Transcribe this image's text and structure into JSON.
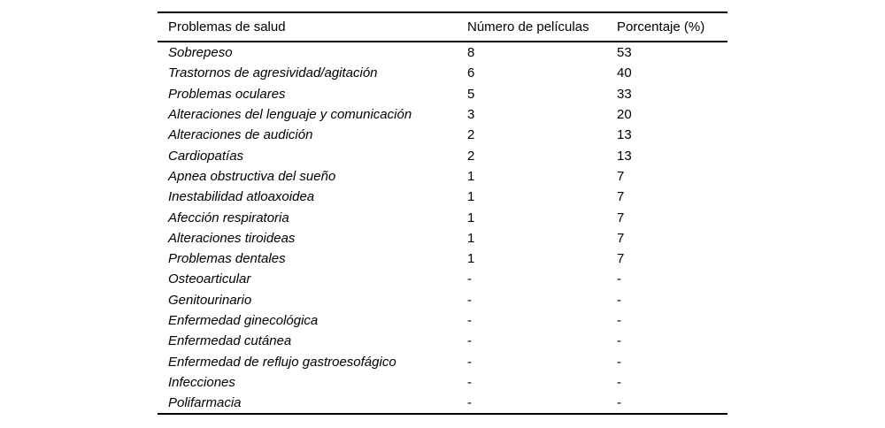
{
  "table": {
    "headers": [
      "Problemas de salud",
      "Número de películas",
      "Porcentaje (%)"
    ],
    "rows": [
      {
        "problema": "Sobrepeso",
        "peliculas": "8",
        "porcentaje": "53"
      },
      {
        "problema": "Trastornos de agresividad/agitación",
        "peliculas": "6",
        "porcentaje": "40"
      },
      {
        "problema": "Problemas oculares",
        "peliculas": "5",
        "porcentaje": "33"
      },
      {
        "problema": "Alteraciones del lenguaje y comunicación",
        "peliculas": "3",
        "porcentaje": "20"
      },
      {
        "problema": "Alteraciones de audición",
        "peliculas": "2",
        "porcentaje": "13"
      },
      {
        "problema": "Cardiopatías",
        "peliculas": "2",
        "porcentaje": "13"
      },
      {
        "problema": "Apnea obstructiva del sueño",
        "peliculas": "1",
        "porcentaje": "7"
      },
      {
        "problema": "Inestabilidad atloaxoidea",
        "peliculas": "1",
        "porcentaje": "7"
      },
      {
        "problema": "Afección respiratoria",
        "peliculas": "1",
        "porcentaje": "7"
      },
      {
        "problema": "Alteraciones tiroideas",
        "peliculas": "1",
        "porcentaje": "7"
      },
      {
        "problema": "Problemas dentales",
        "peliculas": "1",
        "porcentaje": "7"
      },
      {
        "problema": "Osteoarticular",
        "peliculas": "-",
        "porcentaje": "-"
      },
      {
        "problema": "Genitourinario",
        "peliculas": "-",
        "porcentaje": "-"
      },
      {
        "problema": "Enfermedad ginecológica",
        "peliculas": "-",
        "porcentaje": "-"
      },
      {
        "problema": "Enfermedad cutánea",
        "peliculas": "-",
        "porcentaje": "-"
      },
      {
        "problema": "Enfermedad de reflujo gastroesofágico",
        "peliculas": "-",
        "porcentaje": "-"
      },
      {
        "problema": "Infecciones",
        "peliculas": "-",
        "porcentaje": "-"
      },
      {
        "problema": "Polifarmacia",
        "peliculas": "-",
        "porcentaje": "-"
      }
    ],
    "colors": {
      "text": "#000000",
      "rule": "#000000",
      "background": "#ffffff"
    }
  }
}
